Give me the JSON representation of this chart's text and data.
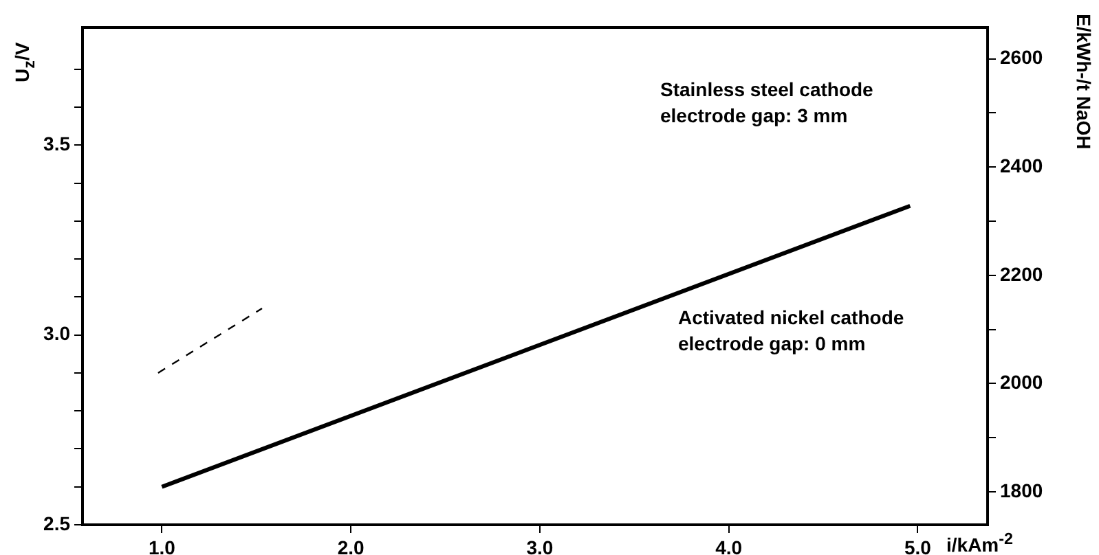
{
  "chart_data": {
    "type": "line",
    "xlabel": "i/kAm$^{-2}$",
    "ylabel": "U$_{z}$/V",
    "y2label": "E/kWh-/t NaOH",
    "xlim": [
      0.58,
      5.37
    ],
    "ylim": [
      2.5,
      3.81
    ],
    "y2lim": [
      1739,
      2658
    ],
    "xticks": [
      {
        "value": 1,
        "label": "1.0"
      },
      {
        "value": 2,
        "label": "2.0"
      },
      {
        "value": 3,
        "label": "3.0"
      },
      {
        "value": 4,
        "label": "4.0"
      },
      {
        "value": 5,
        "label": "5.0"
      }
    ],
    "yticks": [
      2.5,
      {
        "value": 2.6,
        "label": null
      },
      {
        "value": 2.7,
        "label": null
      },
      {
        "value": 2.8,
        "label": null
      },
      {
        "value": 2.9,
        "label": null
      },
      {
        "value": 3,
        "label": "3.0"
      },
      {
        "value": 3.1,
        "label": null
      },
      {
        "value": 3.2,
        "label": null
      },
      {
        "value": 3.3,
        "label": null
      },
      {
        "value": 3.4,
        "label": null
      },
      3.5,
      {
        "value": 3.6,
        "label": null
      },
      {
        "value": 3.7,
        "label": null
      }
    ],
    "y2ticks": [
      1800,
      {
        "value": 1900,
        "label": null
      },
      2000,
      {
        "value": 2100,
        "label": null
      },
      2200,
      {
        "value": 2300,
        "label": null
      },
      2400,
      {
        "value": 2500,
        "label": null
      },
      2600
    ],
    "grid": false,
    "legend": false,
    "marker": "none",
    "series": [
      {
        "color": "#000000",
        "line_style": "solid",
        "x": [
          1.0,
          4.96
        ],
        "values": [
          2.6,
          3.34
        ]
      },
      {
        "color": "#000000",
        "line_style": "dashed",
        "x": [
          0.98,
          1.53
        ],
        "values": [
          2.9,
          3.07
        ]
      }
    ],
    "annotations": [
      "Stainless steel cathode\nelectrode gap: 3 mm",
      "Activated nickel cathode\nelectrode gap: 0 mm"
    ]
  }
}
